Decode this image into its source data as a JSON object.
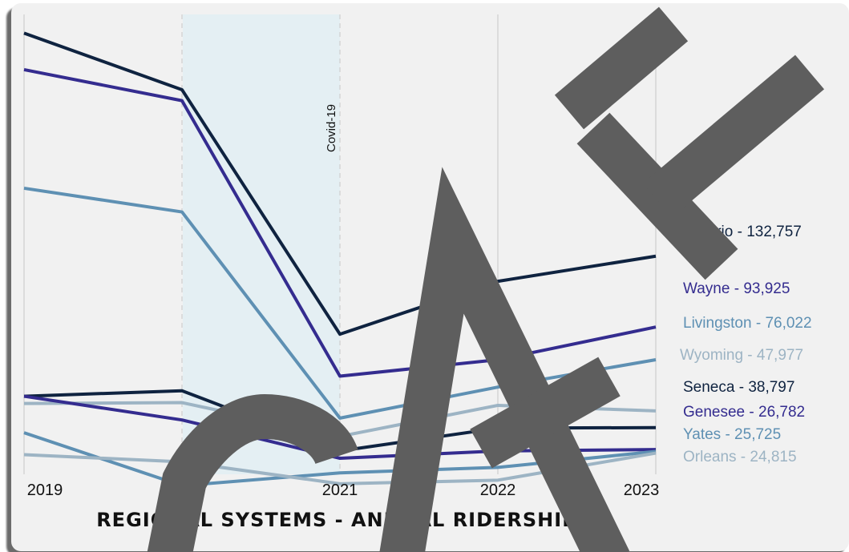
{
  "chart_data": {
    "type": "line",
    "title": "REGIONAL SYSTEMS - ANNUAL RIDERSHIP",
    "x": [
      "2019",
      "2020",
      "2021",
      "2022",
      "2023"
    ],
    "annotation": {
      "label": "Covid-19",
      "x_start": "2020",
      "x_end": "2021"
    },
    "ylim": [
      22000,
      260000
    ],
    "grid": true,
    "legend": "right-end labels",
    "series": [
      {
        "name": "Ontario",
        "end_label": "132,757",
        "color": "#0f2340",
        "values": [
          255000,
          224000,
          90000,
          119000,
          132757
        ]
      },
      {
        "name": "Wayne",
        "end_label": "93,925",
        "color": "#342c8f",
        "values": [
          235000,
          218000,
          67000,
          76000,
          93925
        ]
      },
      {
        "name": "Livingston",
        "end_label": "76,022",
        "color": "#5e90b3",
        "values": [
          170000,
          157000,
          44000,
          61000,
          76022
        ]
      },
      {
        "name": "Wyoming",
        "end_label": "47,977",
        "color": "#9db4c4",
        "values": [
          52000,
          52500,
          34000,
          51000,
          47977
        ]
      },
      {
        "name": "Seneca",
        "end_label": "38,797",
        "color": "#0f2340",
        "values": [
          56000,
          59000,
          26000,
          38500,
          38797
        ]
      },
      {
        "name": "Genesee",
        "end_label": "26,782",
        "color": "#342c8f",
        "values": [
          56000,
          43000,
          22000,
          26000,
          26782
        ]
      },
      {
        "name": "Yates",
        "end_label": "25,725",
        "color": "#5e90b3",
        "values": [
          36000,
          7000,
          14000,
          17000,
          25725
        ]
      },
      {
        "name": "Orleans",
        "end_label": "24,815",
        "color": "#9db4c4",
        "values": [
          24000,
          20000,
          8000,
          10000,
          24815
        ]
      }
    ]
  },
  "watermark": {
    "text": "DRAFT"
  }
}
